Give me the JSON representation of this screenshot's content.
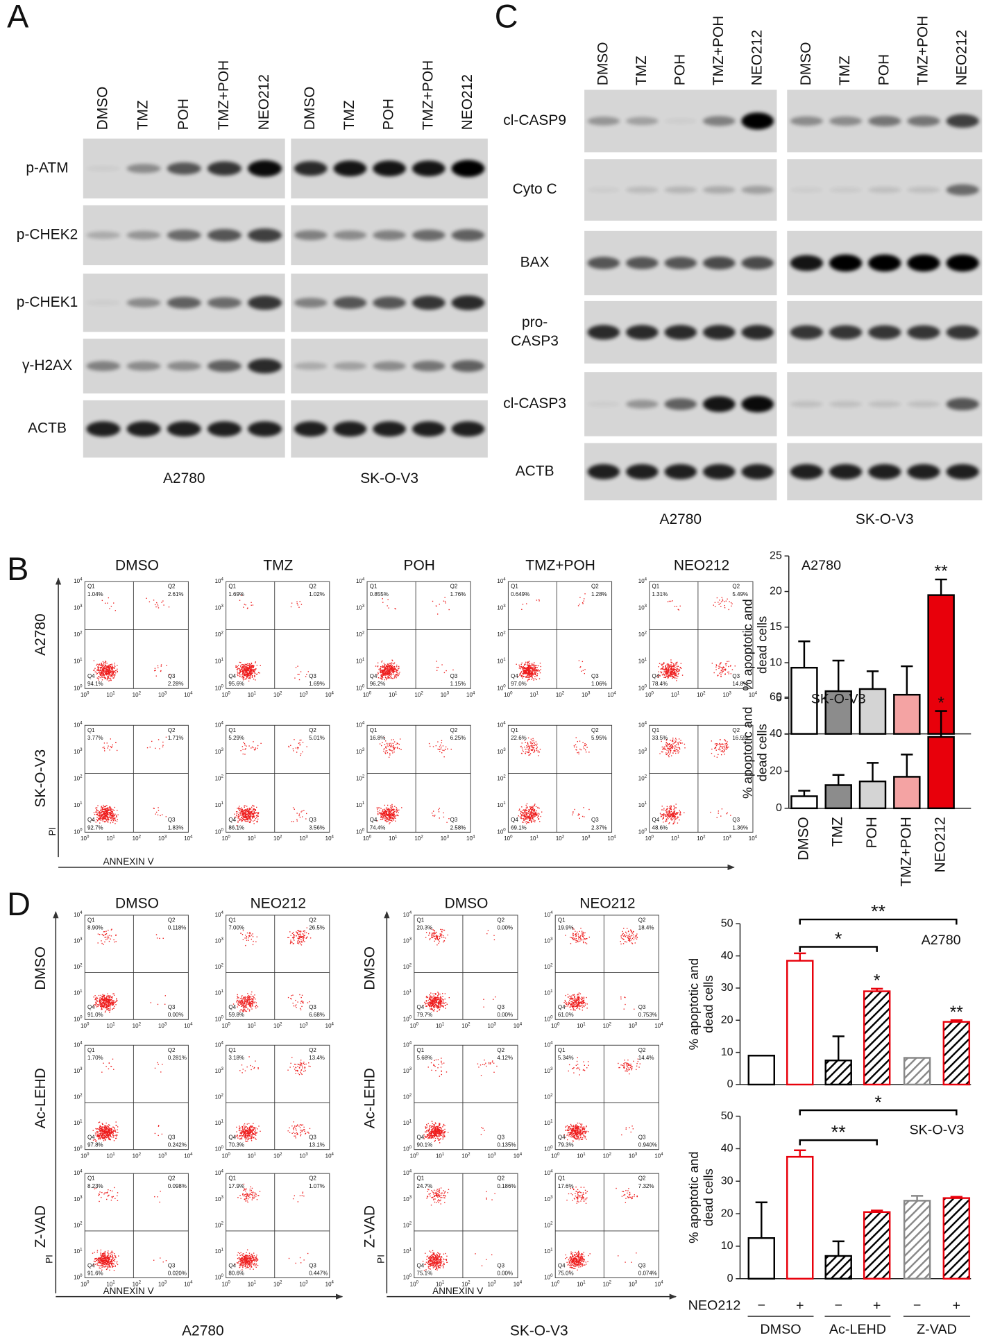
{
  "panel_labels": [
    "A",
    "B",
    "C",
    "D"
  ],
  "blots_A": {
    "lanes": [
      "DMSO",
      "TMZ",
      "POH",
      "TMZ+POH",
      "NEO212"
    ],
    "rows": [
      [
        "p-ATM"
      ],
      [
        "p-CHEK2"
      ],
      [
        "p-CHEK1"
      ],
      [
        "γ-H2AX"
      ],
      [
        "ACTB"
      ]
    ],
    "cell_lines": [
      "A2780",
      "SK-O-V3"
    ]
  },
  "blots_C": {
    "lanes": [
      "DMSO",
      "TMZ",
      "POH",
      "TMZ+POH",
      "NEO212"
    ],
    "rows": [
      [
        "cl-CASP9"
      ],
      [
        "Cyto C"
      ],
      [
        "BAX"
      ],
      [
        "pro-",
        "CASP3"
      ],
      [
        "cl-CASP3"
      ],
      [
        "ACTB"
      ]
    ],
    "cell_lines": [
      "A2780",
      "SK-O-V3"
    ]
  },
  "flow_axis": {
    "base": "10",
    "exponents": [
      0,
      1,
      2,
      3,
      4
    ]
  },
  "quadrant_names": [
    "Q1",
    "Q2",
    "Q3",
    "Q4"
  ],
  "flow_B": {
    "columns": [
      "DMSO",
      "TMZ",
      "POH",
      "TMZ+POH",
      "NEO212"
    ],
    "rows": [
      "A2780",
      "SK-O-V3"
    ],
    "x_axis": "ANNEXIN V",
    "y_axis": "PI",
    "plots": [
      [
        [
          "1.04%",
          "2.61%",
          "2.28%",
          "94.1%"
        ],
        [
          "1.69%",
          "1.02%",
          "1.69%",
          "95.6%"
        ],
        [
          "0.855%",
          "1.76%",
          "1.15%",
          "96.2%"
        ],
        [
          "0.649%",
          "1.28%",
          "1.06%",
          "97.0%"
        ],
        [
          "1.31%",
          "5.49%",
          "14.8%",
          "78.4%"
        ]
      ],
      [
        [
          "3.77%",
          "1.71%",
          "1.83%",
          "92.7%"
        ],
        [
          "5.29%",
          "5.01%",
          "3.56%",
          "86.1%"
        ],
        [
          "16.8%",
          "6.25%",
          "2.58%",
          "74.4%"
        ],
        [
          "22.6%",
          "5.95%",
          "2.37%",
          "69.1%"
        ],
        [
          "33.5%",
          "16.5%",
          "1.36%",
          "48.6%"
        ]
      ]
    ]
  },
  "flow_D": [
    {
      "cell_line": "A2780",
      "columns": [
        "DMSO",
        "NEO212"
      ],
      "rows": [
        "DMSO",
        "Ac-LEHD",
        "Z-VAD"
      ],
      "x_axis": "ANNEXIN V",
      "y_axis": "PI",
      "plots": [
        [
          [
            "8.90%",
            "0.118%",
            "0.00%",
            "91.0%"
          ],
          [
            "7.00%",
            "26.5%",
            "6.68%",
            "59.8%"
          ]
        ],
        [
          [
            "1.70%",
            "0.281%",
            "0.242%",
            "97.8%"
          ],
          [
            "3.18%",
            "13.4%",
            "13.1%",
            "70.3%"
          ]
        ],
        [
          [
            "8.23%",
            "0.098%",
            "0.020%",
            "91.6%"
          ],
          [
            "17.9%",
            "1.07%",
            "0.447%",
            "80.6%"
          ]
        ]
      ]
    },
    {
      "cell_line": "SK-O-V3",
      "columns": [
        "DMSO",
        "NEO212"
      ],
      "rows": [
        "DMSO",
        "Ac-LEHD",
        "Z-VAD"
      ],
      "x_axis": "ANNEXIN V",
      "y_axis": "PI",
      "plots": [
        [
          [
            "20.3%",
            "0.00%",
            "0.00%",
            "79.7%"
          ],
          [
            "19.9%",
            "18.4%",
            "0.753%",
            "61.0%"
          ]
        ],
        [
          [
            "5.68%",
            "4.12%",
            "0.135%",
            "90.1%"
          ],
          [
            "5.34%",
            "14.4%",
            "0.940%",
            "79.3%"
          ]
        ],
        [
          [
            "24.7%",
            "0.186%",
            "0.00%",
            "75.1%"
          ],
          [
            "17.6%",
            "7.32%",
            "0.074%",
            "75.0%"
          ]
        ]
      ]
    }
  ],
  "chart_data": [
    {
      "type": "bar",
      "label": "A2780",
      "y_label": [
        "% apoptotic and",
        "dead cells"
      ],
      "values": [
        9.3,
        6,
        6.3,
        5.5,
        19.5
      ],
      "errors": [
        3.7,
        4.3,
        2.5,
        4,
        2.2
      ],
      "colors": [
        "#ffffff",
        "#8c8c8c",
        "#d4d4d4",
        "#f4a3a3",
        "#e8000b"
      ],
      "edge_colors": [
        "#000000",
        "#000000",
        "#000000",
        "#000000",
        "#000000"
      ],
      "ylim": [
        0,
        25
      ],
      "yticks": [
        0,
        5,
        10,
        15,
        20,
        25
      ],
      "annotations": [
        "**"
      ]
    },
    {
      "type": "bar",
      "label": "SK-O-V3",
      "y_label": [
        "% apoptotic and",
        "dead cells"
      ],
      "categories": [
        "DMSO",
        "TMZ",
        "POH",
        "TMZ+POH",
        "NEO212"
      ],
      "values": [
        6.5,
        12.5,
        14.5,
        17,
        38.5
      ],
      "errors": [
        3,
        5.5,
        10,
        12,
        14
      ],
      "colors": [
        "#ffffff",
        "#8c8c8c",
        "#d4d4d4",
        "#f4a3a3",
        "#e8000b"
      ],
      "edge_colors": [
        "#000000",
        "#000000",
        "#000000",
        "#000000",
        "#000000"
      ],
      "ylim": [
        0,
        60
      ],
      "yticks": [
        0,
        20,
        40,
        60
      ],
      "annotations": [
        "*"
      ]
    },
    {
      "type": "bar",
      "label": "A2780",
      "y_label": [
        "% apoptotic and",
        "dead cells"
      ],
      "values": [
        9,
        38.5,
        7.5,
        29,
        8.3,
        19.5
      ],
      "errors": [
        null,
        2.3,
        7.5,
        0.8,
        null,
        0.5
      ],
      "colors": [
        "#ffffff",
        "#ffffff",
        "#ffffff",
        "#ffffff",
        "#ffffff",
        "#ffffff"
      ],
      "edge_colors": [
        "#000000",
        "#e8000b",
        "#000000",
        "#e8000b",
        "#888888",
        "#e8000b"
      ],
      "hatched": [
        false,
        false,
        true,
        true,
        true,
        true
      ],
      "hatch_colors": [
        "#000000",
        "#000000",
        "#000000",
        "#000000",
        "#888888",
        "#000000"
      ],
      "ylim": [
        0,
        50
      ],
      "yticks": [
        0,
        10,
        20,
        30,
        40,
        50
      ],
      "annotations": [
        "*",
        "**",
        "*",
        "**"
      ]
    },
    {
      "type": "bar",
      "label": "SK-O-V3",
      "y_label": [
        "% apoptotic and",
        "dead cells"
      ],
      "values": [
        12.5,
        37.5,
        7,
        20.5,
        24,
        24.8
      ],
      "errors": [
        11,
        2,
        4.5,
        0.5,
        1.5,
        0.4
      ],
      "colors": [
        "#ffffff",
        "#ffffff",
        "#ffffff",
        "#ffffff",
        "#ffffff",
        "#ffffff"
      ],
      "edge_colors": [
        "#000000",
        "#e8000b",
        "#000000",
        "#e8000b",
        "#888888",
        "#e8000b"
      ],
      "hatched": [
        false,
        false,
        true,
        true,
        true,
        true
      ],
      "hatch_colors": [
        "#000000",
        "#000000",
        "#000000",
        "#000000",
        "#888888",
        "#000000"
      ],
      "ylim": [
        0,
        50
      ],
      "yticks": [
        0,
        10,
        20,
        30,
        40,
        50
      ],
      "annotations": [
        "*",
        "**"
      ],
      "treatment_label": "NEO212",
      "signs": [
        "−",
        "+",
        "−",
        "+",
        "−",
        "+"
      ],
      "groups": [
        "DMSO",
        "Ac-LEHD",
        "Z-VAD"
      ]
    }
  ]
}
